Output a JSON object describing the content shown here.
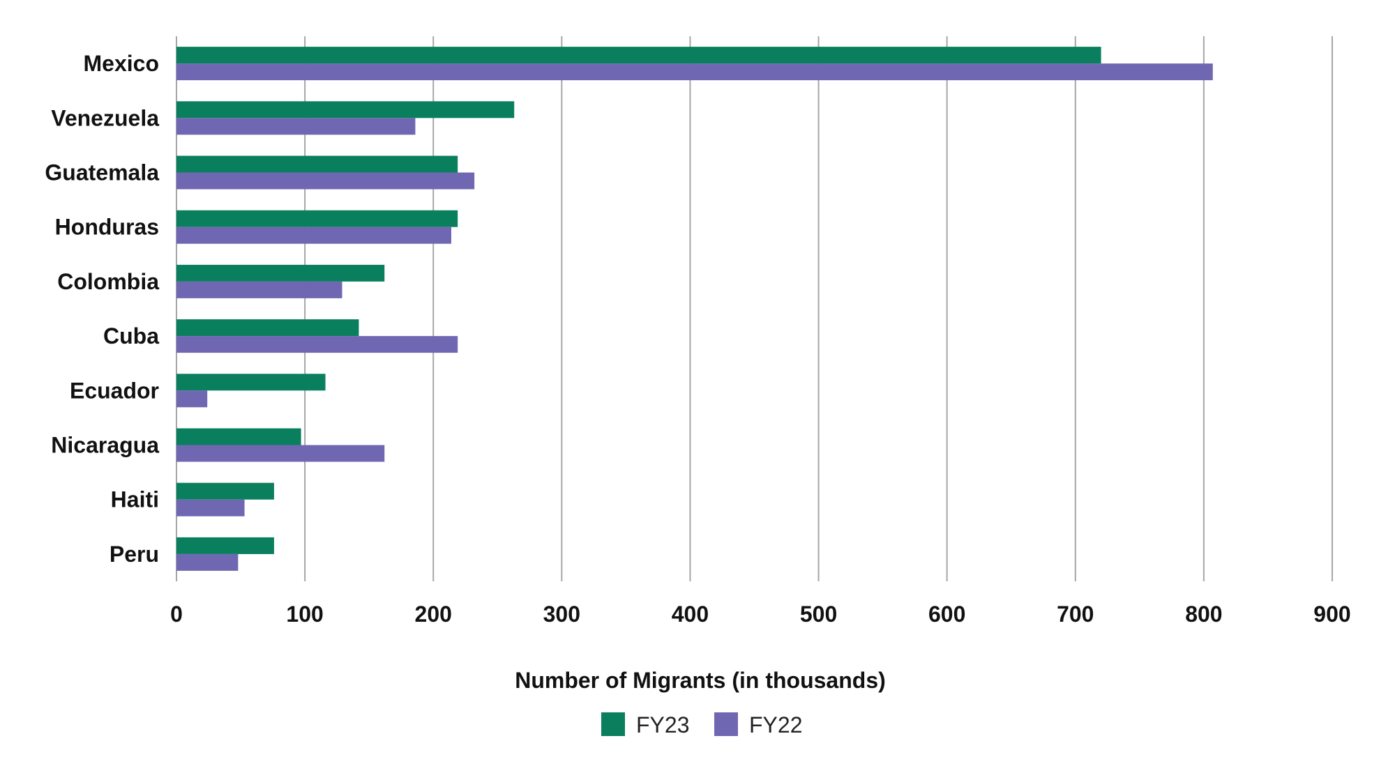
{
  "chart_data": {
    "type": "bar",
    "orientation": "horizontal",
    "categories": [
      "Mexico",
      "Venezuela",
      "Guatemala",
      "Honduras",
      "Colombia",
      "Cuba",
      "Ecuador",
      "Nicaragua",
      "Haiti",
      "Peru"
    ],
    "series": [
      {
        "name": "FY23",
        "color": "#0a7f5e",
        "values": [
          720,
          263,
          219,
          219,
          162,
          142,
          116,
          97,
          76,
          76
        ]
      },
      {
        "name": "FY22",
        "color": "#7067b3",
        "values": [
          807,
          186,
          232,
          214,
          129,
          219,
          24,
          162,
          53,
          48
        ]
      }
    ],
    "x_ticks": [
      "0",
      "100",
      "200",
      "300",
      "400",
      "500",
      "600",
      "700",
      "800",
      "900"
    ],
    "xlim": [
      0,
      900
    ],
    "xlabel": "Number of Migrants (in thousands)",
    "ylabel": "",
    "title": "",
    "grid": "vertical",
    "legend_position": "bottom-center"
  }
}
